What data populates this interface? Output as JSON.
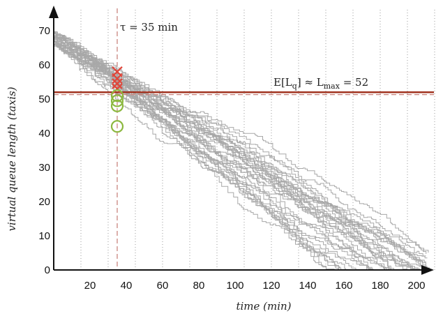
{
  "chart_data": {
    "type": "line",
    "xlabel": "time (min)",
    "ylabel": "virtual queue length (taxis)",
    "xlim": [
      0,
      212
    ],
    "ylim": [
      0,
      74
    ],
    "xticks": [
      20,
      40,
      60,
      80,
      100,
      120,
      140,
      160,
      180,
      200
    ],
    "yticks": [
      0,
      10,
      20,
      30,
      40,
      50,
      60,
      70
    ],
    "grid": "vertical dotted every 15",
    "tau_line": {
      "x": 35,
      "label": "τ = 35 min"
    },
    "lmax_line": {
      "y": 52,
      "label_main": "E[L",
      "label_sub1": "q",
      "label_mid": "] ≈ L",
      "label_sub2": "max",
      "label_end": " = 52"
    },
    "reference_dashed_y": 51.3,
    "cross_markers_y": [
      58,
      56,
      54.5,
      53
    ],
    "circle_markers_y": [
      51,
      49.5,
      48,
      42
    ],
    "trajectories": {
      "count": 32,
      "start_y_range": [
        65,
        70
      ],
      "end_x_range": [
        118,
        162
      ]
    },
    "colors": {
      "trajectory": "#a8a8a8",
      "lmax": "#a13320",
      "dashed": "#c9847e",
      "cross": "#e0463a",
      "circle": "#8cb83f",
      "axis": "#111111"
    }
  }
}
